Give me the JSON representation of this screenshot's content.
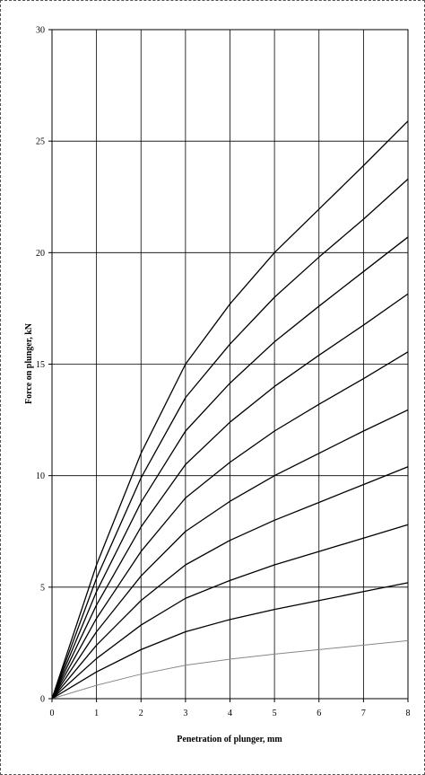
{
  "chart_data": {
    "type": "line",
    "title": "",
    "xlabel": "Penetration of plunger, mm",
    "ylabel": "Force on plunger, kN",
    "xlim": [
      0,
      8
    ],
    "ylim": [
      0,
      30
    ],
    "x_ticks": [
      "0",
      "1",
      "2",
      "3",
      "4",
      "5",
      "6",
      "7",
      "8"
    ],
    "y_ticks": [
      "0",
      "5",
      "10",
      "15",
      "20",
      "25",
      "30"
    ],
    "grid": true,
    "legend": "none",
    "x": [
      0,
      1,
      2,
      3,
      4,
      5,
      6,
      7,
      8
    ],
    "series": [
      {
        "values": [
          0,
          0.6,
          1.1,
          1.5,
          1.77,
          2.0,
          2.2,
          2.4,
          2.6
        ],
        "color": "#888888"
      },
      {
        "values": [
          0,
          1.2,
          2.2,
          3.0,
          3.55,
          4.0,
          4.4,
          4.8,
          5.2
        ],
        "color": "#000000"
      },
      {
        "values": [
          0,
          1.8,
          3.3,
          4.5,
          5.3,
          6.0,
          6.6,
          7.2,
          7.8
        ],
        "color": "#000000"
      },
      {
        "values": [
          0,
          2.4,
          4.4,
          6.0,
          7.1,
          8.0,
          8.8,
          9.6,
          10.4
        ],
        "color": "#000000"
      },
      {
        "values": [
          0,
          3.0,
          5.5,
          7.5,
          8.85,
          10.0,
          11.0,
          12.0,
          12.95
        ],
        "color": "#000000"
      },
      {
        "values": [
          0,
          3.6,
          6.6,
          9.0,
          10.6,
          12.0,
          13.2,
          14.35,
          15.55
        ],
        "color": "#000000"
      },
      {
        "values": [
          0,
          4.2,
          7.7,
          10.5,
          12.4,
          14.0,
          15.4,
          16.75,
          18.15
        ],
        "color": "#000000"
      },
      {
        "values": [
          0,
          4.8,
          8.8,
          12.0,
          14.15,
          16.0,
          17.6,
          19.15,
          20.7
        ],
        "color": "#000000"
      },
      {
        "values": [
          0,
          5.4,
          9.9,
          13.5,
          15.9,
          18.0,
          19.8,
          21.5,
          23.3
        ],
        "color": "#000000"
      },
      {
        "values": [
          0,
          6.0,
          11.0,
          15.0,
          17.7,
          20.0,
          21.95,
          23.9,
          25.9
        ],
        "color": "#000000"
      }
    ]
  }
}
